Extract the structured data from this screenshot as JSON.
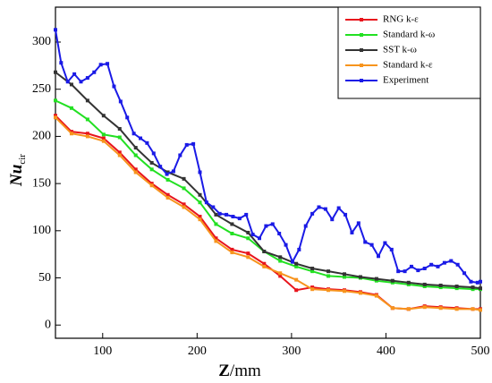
{
  "chart_data": {
    "type": "line",
    "x_label_parts": [
      "Z",
      "/mm"
    ],
    "y_label_parts": [
      "Nu",
      "cir"
    ],
    "xlim": [
      50,
      500
    ],
    "xticks": [
      100,
      200,
      300,
      400,
      500
    ],
    "ylim": [
      -14,
      337
    ],
    "yticks": [
      0,
      50,
      100,
      150,
      200,
      250,
      300
    ],
    "legend": "upper right",
    "series": [
      {
        "name": "RNG k-ε",
        "color": "#e8141c",
        "x": [
          50,
          67,
          84,
          101,
          118,
          135,
          152,
          169,
          186,
          203,
          220,
          237,
          254,
          271,
          288,
          305,
          322,
          339,
          356,
          373,
          390,
          407,
          424,
          441,
          458,
          475,
          492,
          500
        ],
        "values": [
          222,
          205,
          203,
          198,
          183,
          165,
          150,
          138,
          128,
          115,
          92,
          80,
          76,
          65,
          52,
          37,
          40,
          38,
          37,
          35,
          32,
          18,
          17,
          20,
          19,
          18,
          17,
          17
        ]
      },
      {
        "name": "Standard k-ω",
        "color": "#22e022",
        "x": [
          50,
          67,
          84,
          101,
          118,
          135,
          152,
          169,
          186,
          203,
          220,
          237,
          254,
          271,
          288,
          305,
          322,
          339,
          356,
          373,
          390,
          407,
          424,
          441,
          458,
          475,
          492,
          500
        ],
        "values": [
          238,
          230,
          218,
          202,
          199,
          180,
          165,
          154,
          145,
          130,
          107,
          97,
          92,
          78,
          68,
          62,
          57,
          52,
          51,
          50,
          47,
          45,
          43,
          41,
          40,
          39,
          38,
          38
        ]
      },
      {
        "name": "SST k-ω",
        "color": "#333333",
        "x": [
          50,
          67,
          84,
          101,
          118,
          135,
          152,
          169,
          186,
          203,
          220,
          237,
          254,
          271,
          288,
          305,
          322,
          339,
          356,
          373,
          390,
          407,
          424,
          441,
          458,
          475,
          492,
          500
        ],
        "values": [
          268,
          255,
          238,
          222,
          208,
          188,
          172,
          162,
          155,
          138,
          117,
          107,
          98,
          78,
          72,
          65,
          60,
          57,
          54,
          51,
          49,
          47,
          45,
          43,
          42,
          41,
          40,
          39
        ]
      },
      {
        "name": "Standard k-ε",
        "color": "#f7941d",
        "x": [
          50,
          67,
          84,
          101,
          118,
          135,
          152,
          169,
          186,
          203,
          220,
          237,
          254,
          271,
          288,
          305,
          322,
          339,
          356,
          373,
          390,
          407,
          424,
          441,
          458,
          475,
          492,
          500
        ],
        "values": [
          220,
          203,
          200,
          195,
          180,
          162,
          148,
          135,
          125,
          112,
          89,
          77,
          72,
          62,
          55,
          48,
          38,
          37,
          36,
          34,
          31,
          18,
          17,
          19,
          18,
          17,
          17,
          16
        ]
      },
      {
        "name": "Experiment",
        "color": "#1a1ae6",
        "x": [
          50,
          56,
          63,
          70,
          77,
          84,
          91,
          98,
          105,
          112,
          119,
          126,
          133,
          140,
          147,
          154,
          161,
          168,
          175,
          182,
          189,
          196,
          203,
          210,
          217,
          224,
          231,
          238,
          245,
          252,
          259,
          266,
          273,
          280,
          287,
          294,
          301,
          308,
          315,
          322,
          329,
          336,
          343,
          350,
          357,
          364,
          371,
          378,
          385,
          392,
          399,
          406,
          413,
          420,
          427,
          434,
          441,
          448,
          455,
          462,
          469,
          476,
          483,
          490,
          497,
          500
        ],
        "values": [
          313,
          278,
          258,
          266,
          258,
          262,
          268,
          276,
          277,
          253,
          237,
          220,
          203,
          198,
          193,
          182,
          168,
          160,
          163,
          180,
          191,
          192,
          162,
          130,
          125,
          118,
          117,
          115,
          113,
          117,
          96,
          92,
          105,
          107,
          97,
          85,
          67,
          80,
          105,
          118,
          125,
          123,
          112,
          124,
          117,
          98,
          108,
          88,
          85,
          73,
          87,
          80,
          57,
          57,
          62,
          58,
          60,
          64,
          62,
          66,
          68,
          64,
          55,
          46,
          45,
          46
        ]
      }
    ]
  }
}
